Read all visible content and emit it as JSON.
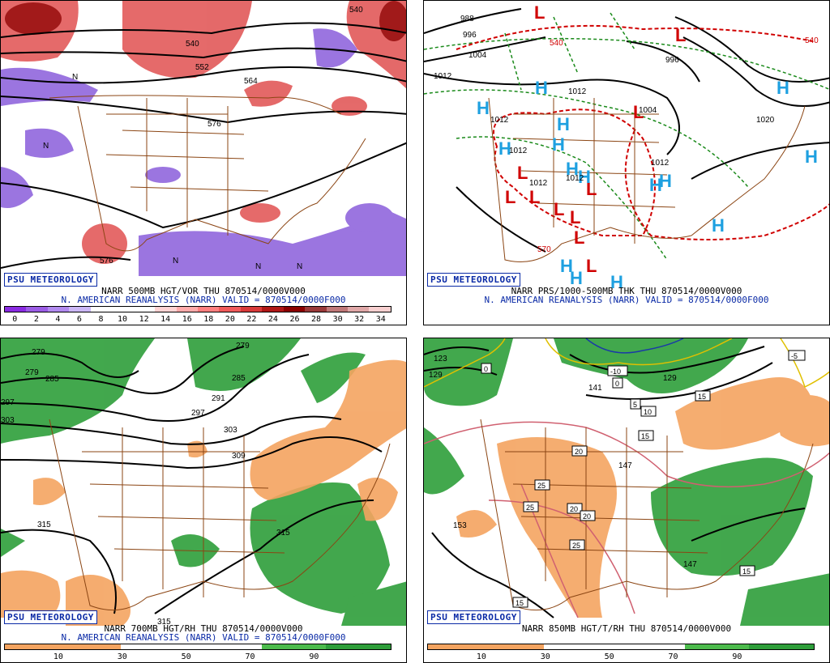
{
  "badge": "PSU METEOROLOGY",
  "panels": [
    {
      "title_line": "NARR 500MB HGT/VOR THU 870514/0000V000",
      "subtitle_line": "N. AMERICAN REANALYSIS (NARR) VALID = 870514/0000F000",
      "colorbar_labels": [
        "0",
        "2",
        "4",
        "6",
        "8",
        "10",
        "12",
        "14",
        "16",
        "18",
        "20",
        "22",
        "24",
        "26",
        "28",
        "30",
        "32",
        "34"
      ],
      "colorbar_colors": [
        "#8a2be2",
        "#9b5de5",
        "#b18aef",
        "#cbb7f6",
        "#ffffff",
        "#ffffff",
        "#ffffff",
        "#ffd3d3",
        "#ffaaaa",
        "#ff7f7f",
        "#f05a5a",
        "#d83a3a",
        "#b01818",
        "#8b0000",
        "#9a3a3a",
        "#c07878",
        "#e0a8a8",
        "#f8d0d0"
      ],
      "contour_labels": [
        "540",
        "540",
        "552",
        "576",
        "564",
        "576"
      ]
    },
    {
      "title_line": "NARR PRS/1000-500MB THK THU 870514/0000V000",
      "subtitle_line": "N. AMERICAN REANALYSIS (NARR) VALID = 870514/0000F000",
      "contour_labels": [
        "988",
        "996",
        "1004",
        "1012",
        "1012",
        "1004",
        "1012",
        "1012",
        "1012",
        "1012",
        "996",
        "1020",
        "1012",
        "540",
        "570",
        "540",
        "1004",
        "1012"
      ]
    },
    {
      "title_line": "NARR 700MB HGT/RH THU 870514/0000V000",
      "subtitle_line": "N. AMERICAN REANALYSIS (NARR) VALID = 870514/0000F000",
      "colorbar_labels": [
        "10",
        "30",
        "50",
        "70",
        "90"
      ],
      "contour_labels": [
        "279",
        "285",
        "297",
        "303",
        "279",
        "285",
        "291",
        "297",
        "303",
        "309",
        "315",
        "315",
        "315"
      ]
    },
    {
      "title_line": "NARR 850MB HGT/T/RH THU 870514/0000V000",
      "subtitle_line": "",
      "colorbar_labels": [
        "10",
        "30",
        "50",
        "70",
        "90"
      ],
      "contour_labels": [
        "123",
        "129",
        "141",
        "147",
        "129",
        "153",
        "147",
        "-10",
        "-5",
        "0",
        "0",
        "5",
        "10",
        "15",
        "15",
        "15",
        "20",
        "20",
        "20",
        "25",
        "25",
        "25",
        "15",
        "15"
      ]
    }
  ],
  "colors": {
    "dry": "#f4a460",
    "moist": "#2e9e3a",
    "border": "#8b4513",
    "low": "#d00000",
    "high": "#1ea0e0",
    "badge": "#0a2aa6"
  }
}
